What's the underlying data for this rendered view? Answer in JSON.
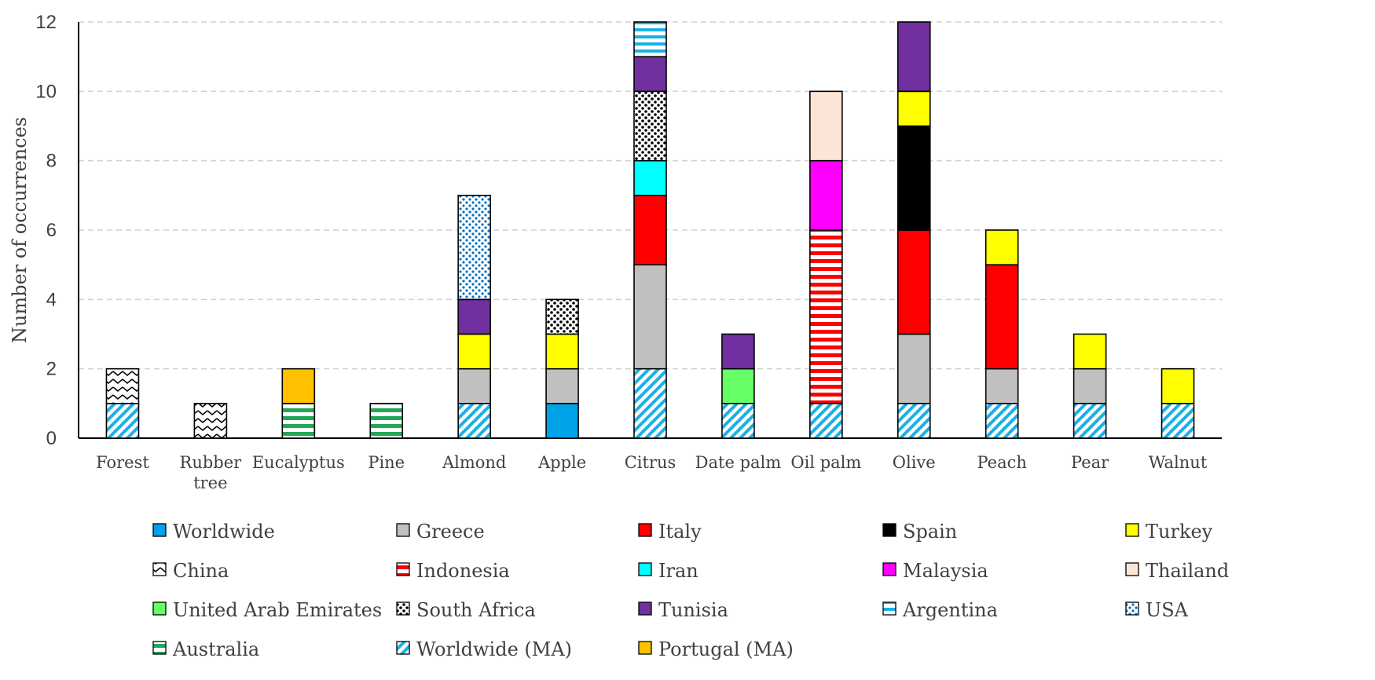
{
  "chart_data": {
    "type": "bar",
    "stacked": true,
    "title": "",
    "xlabel": "",
    "ylabel": "Number of occurrences",
    "ylim": [
      0,
      12
    ],
    "yticks": [
      0,
      2,
      4,
      6,
      8,
      10,
      12
    ],
    "grid": "horizontal dashed",
    "legend_position": "bottom",
    "categories": [
      "Forest",
      "Rubber tree",
      "Eucalyptus",
      "Pine",
      "Almond",
      "Apple",
      "Citrus",
      "Date palm",
      "Oil palm",
      "Olive",
      "Peach",
      "Pear",
      "Walnut"
    ],
    "series": [
      {
        "name": "Worldwide (MA)",
        "color": "#1ab0e8",
        "pattern": "diag",
        "values": [
          1,
          0,
          0,
          0,
          1,
          0,
          2,
          1,
          1,
          1,
          1,
          1,
          1
        ]
      },
      {
        "name": "Worldwide",
        "color": "#00a2e8",
        "pattern": "solid",
        "values": [
          0,
          0,
          0,
          0,
          0,
          1,
          0,
          0,
          0,
          0,
          0,
          0,
          0
        ]
      },
      {
        "name": "Australia",
        "color": "#22a855",
        "pattern": "hstripes",
        "values": [
          0,
          0,
          1,
          1,
          0,
          0,
          0,
          0,
          0,
          0,
          0,
          0,
          0
        ]
      },
      {
        "name": "Greece",
        "color": "#c0c0c0",
        "pattern": "solid",
        "values": [
          0,
          0,
          0,
          0,
          1,
          1,
          3,
          0,
          0,
          2,
          1,
          1,
          0
        ]
      },
      {
        "name": "United Arab Emirates",
        "color": "#66ff66",
        "pattern": "solid",
        "values": [
          0,
          0,
          0,
          0,
          0,
          0,
          0,
          1,
          0,
          0,
          0,
          0,
          0
        ]
      },
      {
        "name": "Indonesia",
        "color": "#ff0000",
        "pattern": "hstripes",
        "values": [
          0,
          0,
          0,
          0,
          0,
          0,
          0,
          0,
          5,
          0,
          0,
          0,
          0
        ]
      },
      {
        "name": "Italy",
        "color": "#ff0000",
        "pattern": "solid",
        "values": [
          0,
          0,
          0,
          0,
          0,
          0,
          2,
          0,
          0,
          3,
          3,
          0,
          0
        ]
      },
      {
        "name": "Spain",
        "color": "#000000",
        "pattern": "solid",
        "values": [
          0,
          0,
          0,
          0,
          0,
          0,
          0,
          0,
          0,
          3,
          0,
          0,
          0
        ]
      },
      {
        "name": "Turkey",
        "color": "#ffff00",
        "pattern": "solid",
        "values": [
          0,
          0,
          0,
          0,
          1,
          1,
          0,
          0,
          0,
          1,
          1,
          1,
          1
        ]
      },
      {
        "name": "Iran",
        "color": "#00ffff",
        "pattern": "solid",
        "values": [
          0,
          0,
          0,
          0,
          0,
          0,
          1,
          0,
          0,
          0,
          0,
          0,
          0
        ]
      },
      {
        "name": "Malaysia",
        "color": "#ff00ff",
        "pattern": "solid",
        "values": [
          0,
          0,
          0,
          0,
          0,
          0,
          0,
          0,
          2,
          0,
          0,
          0,
          0
        ]
      },
      {
        "name": "South Africa",
        "color": "#000000",
        "pattern": "dots",
        "values": [
          0,
          0,
          0,
          0,
          0,
          1,
          2,
          0,
          0,
          0,
          0,
          0,
          0
        ]
      },
      {
        "name": "China",
        "color": "#000000",
        "pattern": "zigzag",
        "values": [
          1,
          1,
          0,
          0,
          0,
          0,
          0,
          0,
          0,
          0,
          0,
          0,
          0
        ]
      },
      {
        "name": "Portugal (MA)",
        "color": "#ffc000",
        "pattern": "solid",
        "values": [
          0,
          0,
          1,
          0,
          0,
          0,
          0,
          0,
          0,
          0,
          0,
          0,
          0
        ]
      },
      {
        "name": "Tunisia",
        "color": "#7030a0",
        "pattern": "solid",
        "values": [
          0,
          0,
          0,
          0,
          1,
          0,
          1,
          1,
          0,
          2,
          0,
          0,
          0
        ]
      },
      {
        "name": "Thailand",
        "color": "#fbe5d6",
        "pattern": "solid",
        "values": [
          0,
          0,
          0,
          0,
          0,
          0,
          0,
          0,
          2,
          0,
          0,
          0,
          0
        ]
      },
      {
        "name": "Argentina",
        "color": "#1ab0e8",
        "pattern": "hstripes",
        "values": [
          0,
          0,
          0,
          0,
          0,
          0,
          1,
          0,
          0,
          0,
          0,
          0,
          0
        ]
      },
      {
        "name": "USA",
        "color": "#0070c0",
        "pattern": "bluedots",
        "values": [
          0,
          0,
          0,
          0,
          3,
          0,
          0,
          0,
          0,
          0,
          0,
          0,
          0
        ]
      }
    ],
    "legend_order": [
      "Worldwide",
      "Greece",
      "Italy",
      "Spain",
      "Turkey",
      "China",
      "Indonesia",
      "Iran",
      "Malaysia",
      "Thailand",
      "United Arab Emirates",
      "South Africa",
      "Tunisia",
      "Argentina",
      "USA",
      "Australia",
      "Worldwide (MA)",
      "Portugal (MA)"
    ]
  }
}
